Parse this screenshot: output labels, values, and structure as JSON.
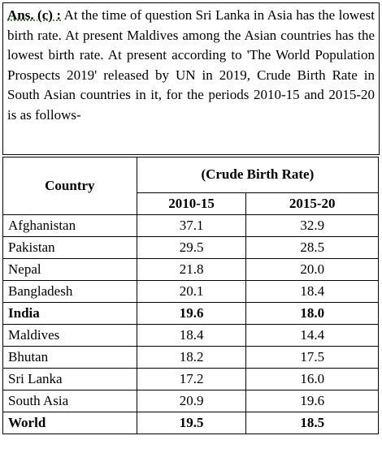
{
  "answer": {
    "label": "Ans. (c) :",
    "text": "At the time of question Sri Lanka in Asia has the lowest birth rate. At present Maldives among the Asian countries has the lowest birth rate. At present according to 'The World Population Prospects 2019' released by UN in 2019, Crude Birth Rate in South Asian countries in it, for the periods 2010-15 and 2015-20 is as follows-"
  },
  "table": {
    "header": {
      "country": "Country",
      "group": "(Crude Birth Rate)",
      "periods": [
        "2010-15",
        "2015-20"
      ]
    },
    "rows": [
      {
        "cells": [
          "Afghanistan",
          "37.1",
          "32.9"
        ],
        "bold": false
      },
      {
        "cells": [
          "Pakistan",
          "29.5",
          "28.5"
        ],
        "bold": false
      },
      {
        "cells": [
          "Nepal",
          "21.8",
          "20.0"
        ],
        "bold": false
      },
      {
        "cells": [
          "Bangladesh",
          "20.1",
          "18.4"
        ],
        "bold": false
      },
      {
        "cells": [
          "India",
          "19.6",
          "18.0"
        ],
        "bold": true
      },
      {
        "cells": [
          "Maldives",
          "18.4",
          "14.4"
        ],
        "bold": false
      },
      {
        "cells": [
          "Bhutan",
          "18.2",
          "17.5"
        ],
        "bold": false
      },
      {
        "cells": [
          "Sri Lanka",
          "17.2",
          "16.0"
        ],
        "bold": false
      },
      {
        "cells": [
          "South Asia",
          "20.9",
          "19.6"
        ],
        "bold": false
      },
      {
        "cells": [
          "World",
          "19.5",
          "18.5"
        ],
        "bold": true
      }
    ]
  }
}
